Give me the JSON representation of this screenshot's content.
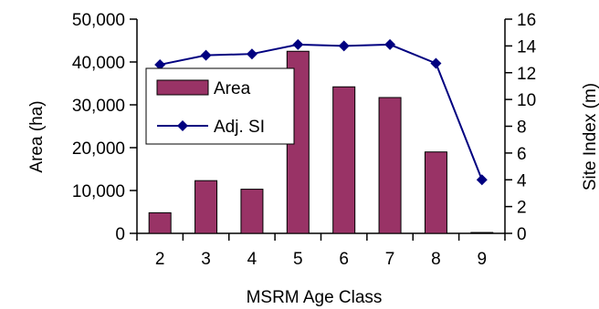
{
  "chart_data": {
    "type": "bar+line",
    "categories": [
      "2",
      "3",
      "4",
      "5",
      "6",
      "7",
      "8",
      "9"
    ],
    "series": [
      {
        "name": "Area",
        "type": "bar",
        "axis": "left",
        "color": "#993366",
        "values": [
          4800,
          12300,
          10300,
          42500,
          34200,
          31700,
          19000,
          200
        ]
      },
      {
        "name": "Adj. SI",
        "type": "line",
        "axis": "right",
        "color": "#000080",
        "marker": "diamond",
        "values": [
          12.6,
          13.3,
          13.4,
          14.1,
          14.0,
          14.1,
          12.7,
          4.0
        ]
      }
    ],
    "xlabel": "MSRM Age Class",
    "ylabel_left": "Area (ha)",
    "ylabel_right": "Site Index (m)",
    "ylim_left": [
      0,
      50000
    ],
    "ylim_right": [
      0,
      16
    ],
    "yticks_left": [
      "0",
      "10,000",
      "20,000",
      "30,000",
      "40,000",
      "50,000"
    ],
    "yticks_right": [
      "0",
      "2",
      "4",
      "6",
      "8",
      "10",
      "12",
      "14",
      "16"
    ],
    "grid": false,
    "legend_position": "upper-left, inside plot"
  }
}
